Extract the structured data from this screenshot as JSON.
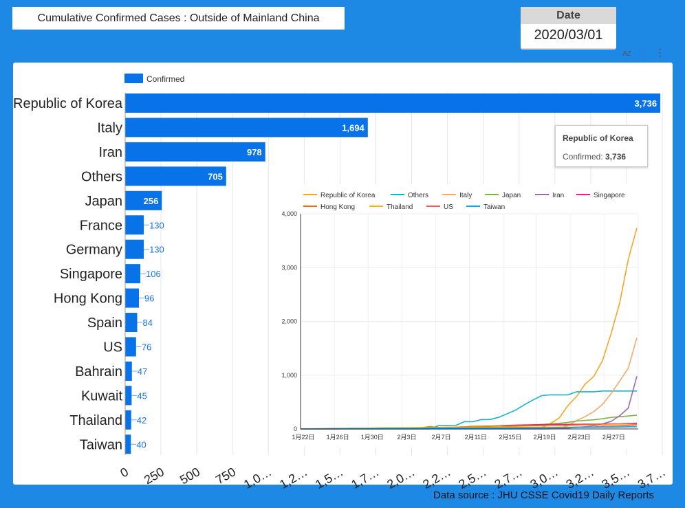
{
  "header": {
    "title": "Cumulative Confirmed Cases : Outside of Mainland China",
    "date_label": "Date",
    "date_value": "2020/03/01",
    "sort_icon_label": "AZ",
    "more_icon": "more-vert-icon"
  },
  "footer": "Data source : JHU CSSE Covid19 Daily Reports",
  "tooltip": {
    "title": "Republic of Korea",
    "label": "Confirmed: ",
    "value": "3,736"
  },
  "chart_data": [
    {
      "type": "bar",
      "orientation": "horizontal",
      "legend": [
        "Confirmed"
      ],
      "legend_position": "top-left",
      "color": "#0872e8",
      "categories": [
        "Republic of Korea",
        "Italy",
        "Iran",
        "Others",
        "Japan",
        "France",
        "Germany",
        "Singapore",
        "Hong Kong",
        "Spain",
        "US",
        "Bahrain",
        "Kuwait",
        "Thailand",
        "Taiwan"
      ],
      "values": [
        3736,
        1694,
        978,
        705,
        256,
        130,
        130,
        106,
        96,
        84,
        76,
        47,
        45,
        42,
        40
      ],
      "xlim": [
        0,
        3750
      ],
      "xticks": [
        "0",
        "250",
        "500",
        "750",
        "1,0…",
        "1,2…",
        "1,5…",
        "1,7…",
        "2,0…",
        "2,2…",
        "2,5…",
        "2,7…",
        "3,0…",
        "3,2…",
        "3,5…",
        "3,7…"
      ],
      "grid": true
    },
    {
      "type": "line",
      "legend_position": "top",
      "ylim": [
        0,
        4000
      ],
      "yticks": [
        "0",
        "1,000",
        "2,000",
        "3,000",
        "4,000"
      ],
      "xticks": [
        "1月22日",
        "1月26日",
        "1月30日",
        "2月3日",
        "2月7日",
        "2月11日",
        "2月15日",
        "2月19日",
        "2月23日",
        "2月27日"
      ],
      "x_start": "1/22",
      "x_end": "3/1",
      "grid": true,
      "series": [
        {
          "name": "Republic of Korea",
          "color": "#f6a623",
          "values": [
            1,
            1,
            2,
            2,
            3,
            4,
            4,
            4,
            4,
            11,
            12,
            15,
            15,
            16,
            19,
            23,
            24,
            24,
            25,
            27,
            28,
            28,
            28,
            28,
            28,
            29,
            30,
            31,
            31,
            104,
            204,
            433,
            602,
            833,
            977,
            1261,
            1766,
            2337,
            3150,
            3736
          ]
        },
        {
          "name": "Others",
          "color": "#12b5cb",
          "values": [
            0,
            0,
            0,
            0,
            0,
            0,
            0,
            0,
            0,
            0,
            0,
            0,
            0,
            0,
            0,
            0,
            61,
            61,
            64,
            135,
            135,
            175,
            175,
            218,
            285,
            355,
            454,
            542,
            621,
            634,
            634,
            634,
            691,
            691,
            691,
            705,
            705,
            705,
            705,
            705
          ]
        },
        {
          "name": "Italy",
          "color": "#f7a86b",
          "values": [
            0,
            0,
            0,
            0,
            0,
            0,
            0,
            0,
            0,
            2,
            2,
            2,
            2,
            2,
            2,
            2,
            2,
            3,
            3,
            3,
            3,
            3,
            3,
            3,
            3,
            3,
            3,
            3,
            3,
            3,
            20,
            62,
            155,
            229,
            322,
            453,
            655,
            888,
            1128,
            1694
          ]
        },
        {
          "name": "Japan",
          "color": "#7cb342",
          "values": [
            2,
            1,
            2,
            2,
            4,
            4,
            7,
            7,
            11,
            15,
            20,
            20,
            20,
            22,
            22,
            45,
            25,
            25,
            26,
            26,
            26,
            28,
            28,
            29,
            43,
            59,
            66,
            74,
            84,
            94,
            105,
            122,
            147,
            159,
            170,
            189,
            214,
            228,
            241,
            256
          ]
        },
        {
          "name": "Iran",
          "color": "#9e69af",
          "values": [
            0,
            0,
            0,
            0,
            0,
            0,
            0,
            0,
            0,
            0,
            0,
            0,
            0,
            0,
            0,
            0,
            0,
            0,
            0,
            0,
            0,
            0,
            0,
            0,
            0,
            0,
            0,
            0,
            0,
            2,
            5,
            18,
            28,
            43,
            61,
            95,
            139,
            245,
            388,
            978
          ]
        },
        {
          "name": "Singapore",
          "color": "#e91e8c",
          "values": [
            0,
            0,
            1,
            3,
            3,
            4,
            5,
            7,
            7,
            10,
            13,
            16,
            18,
            18,
            24,
            28,
            28,
            30,
            33,
            40,
            45,
            47,
            50,
            58,
            67,
            72,
            75,
            77,
            81,
            84,
            84,
            85,
            85,
            89,
            89,
            91,
            93,
            93,
            102,
            106
          ]
        },
        {
          "name": "Hong Kong",
          "color": "#f46d00",
          "values": [
            0,
            2,
            2,
            5,
            8,
            8,
            8,
            10,
            10,
            12,
            13,
            15,
            15,
            17,
            21,
            24,
            25,
            26,
            29,
            38,
            49,
            50,
            53,
            56,
            56,
            57,
            60,
            62,
            63,
            68,
            68,
            69,
            74,
            79,
            84,
            91,
            92,
            94,
            95,
            96
          ]
        },
        {
          "name": "Thailand",
          "color": "#ffb300",
          "values": [
            2,
            3,
            5,
            7,
            8,
            8,
            14,
            14,
            14,
            19,
            19,
            19,
            19,
            25,
            25,
            25,
            25,
            32,
            32,
            32,
            33,
            33,
            33,
            33,
            33,
            34,
            35,
            35,
            35,
            35,
            35,
            35,
            35,
            35,
            37,
            40,
            40,
            41,
            42,
            42
          ]
        },
        {
          "name": "US",
          "color": "#f0595f",
          "values": [
            1,
            1,
            2,
            2,
            5,
            5,
            5,
            5,
            5,
            7,
            8,
            8,
            11,
            11,
            11,
            12,
            12,
            12,
            12,
            12,
            13,
            13,
            14,
            14,
            15,
            15,
            15,
            15,
            15,
            15,
            15,
            15,
            35,
            35,
            35,
            53,
            53,
            59,
            68,
            76
          ]
        },
        {
          "name": "Taiwan",
          "color": "#03a9f4",
          "values": [
            1,
            1,
            3,
            3,
            4,
            5,
            8,
            8,
            9,
            10,
            10,
            10,
            10,
            11,
            11,
            16,
            16,
            17,
            18,
            18,
            18,
            18,
            18,
            18,
            18,
            20,
            22,
            22,
            23,
            24,
            26,
            26,
            28,
            30,
            31,
            32,
            32,
            34,
            39,
            40
          ]
        }
      ]
    }
  ]
}
